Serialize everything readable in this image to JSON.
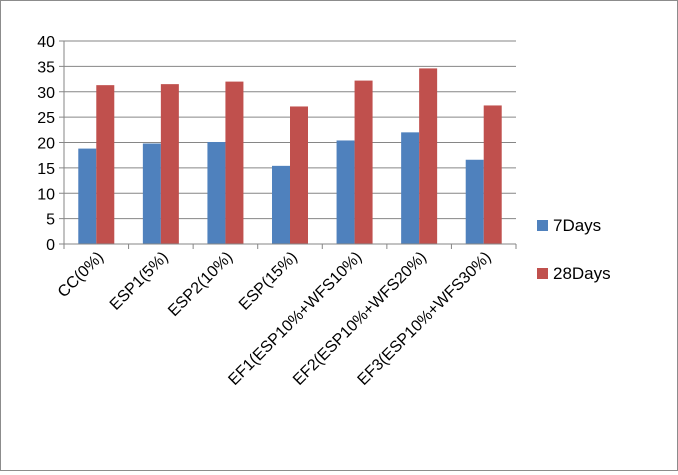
{
  "chart_data": {
    "type": "bar",
    "title": "",
    "xlabel": "",
    "ylabel": "",
    "categories": [
      "CC(0%)",
      "ESP1(5%)",
      "ESP2(10%)",
      "ESP(15%)",
      "EF1(ESP10%+WFS10%)",
      "EF2(ESP10%+WFS20%)",
      "EF3(ESP10%+WFS30%)"
    ],
    "series": [
      {
        "name": "7Days",
        "color": "#4f81bd",
        "values": [
          18.8,
          19.8,
          20.1,
          15.4,
          20.4,
          22.0,
          16.6
        ]
      },
      {
        "name": "28Days",
        "color": "#c0504d",
        "values": [
          31.3,
          31.5,
          32.0,
          27.1,
          32.2,
          34.6,
          27.3
        ]
      }
    ],
    "ylim": [
      0,
      40
    ],
    "yticks": [
      "0",
      "5",
      "10",
      "15",
      "20",
      "25",
      "30",
      "35",
      "40"
    ],
    "grid": true,
    "legend_position": "right"
  }
}
